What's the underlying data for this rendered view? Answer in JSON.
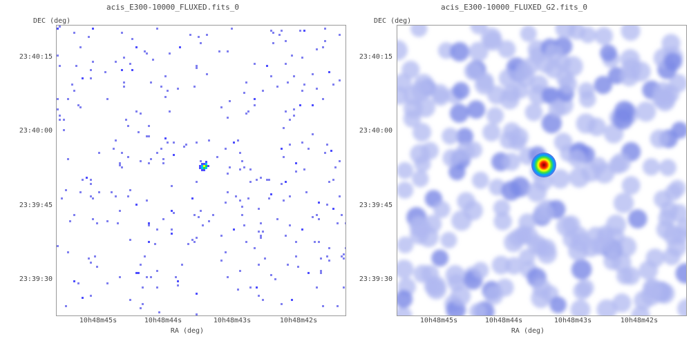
{
  "chart_data": [
    {
      "type": "heatmap",
      "title": "acis_E300-10000_FLUXED.fits_0",
      "xlabel": "RA (deg)",
      "ylabel": "DEC (deg)",
      "xticks": [
        "10h48m45s",
        "10h48m44s",
        "10h48m43s",
        "10h48m42s"
      ],
      "yticks": [
        "23:40:15",
        "23:40:00",
        "23:39:45",
        "23:39:30"
      ],
      "style": "sparse photon events",
      "colormap": [
        "#8080f0",
        "#4d4dff",
        "#00c0ff",
        "#20e040",
        "#ffff00",
        "#ff3000"
      ],
      "source": {
        "ra": "10h48m43.6s",
        "dec": "23:39:52"
      }
    },
    {
      "type": "heatmap",
      "title": "acis_E300-10000_FLUXED_G2.fits_0",
      "xlabel": "RA (deg)",
      "ylabel": "DEC (deg)",
      "xticks": [
        "10h48m45s",
        "10h48m44s",
        "10h48m43s",
        "10h48m42s"
      ],
      "yticks": [
        "23:40:15",
        "23:40:00",
        "23:39:45",
        "23:39:30"
      ],
      "style": "gaussian smoothed",
      "colormap": [
        "#b8c0f0",
        "#6070e0",
        "#00a0ff",
        "#40e040",
        "#ffff00",
        "#ff2000",
        "#800000"
      ],
      "source": {
        "ra": "10h48m43.6s",
        "dec": "23:39:52"
      }
    }
  ]
}
